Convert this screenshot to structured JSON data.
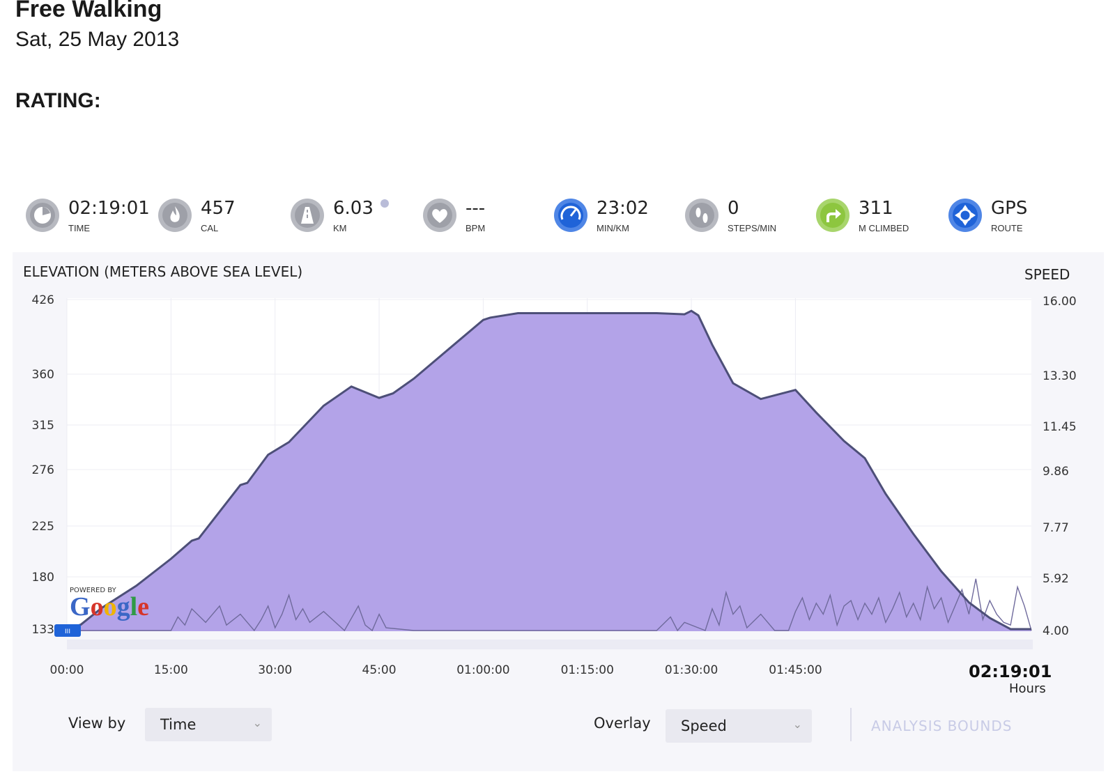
{
  "activity": {
    "title": "Free Walking",
    "date": "Sat, 25 May 2013",
    "rating_label": "RATING:"
  },
  "stats": [
    {
      "value": "02:19:01",
      "label": "TIME",
      "icon": "stopwatch-icon",
      "color": "#9ea0a8"
    },
    {
      "value": "457",
      "label": "CAL",
      "icon": "flame-icon",
      "color": "#9ea0a8"
    },
    {
      "value": "6.03",
      "label": "KM",
      "icon": "road-icon",
      "color": "#9ea0a8"
    },
    {
      "value": "---",
      "label": "BPM",
      "icon": "heart-icon",
      "color": "#9ea0a8"
    },
    {
      "value": "23:02",
      "label": "MIN/KM",
      "icon": "speedometer-icon",
      "color": "#1f63d8"
    },
    {
      "value": "0",
      "label": "STEPS/MIN",
      "icon": "footsteps-icon",
      "color": "#9ea0a8"
    },
    {
      "value": "311",
      "label": "M CLIMBED",
      "icon": "climb-arrow-icon",
      "color": "#8dc63f"
    },
    {
      "value": "GPS",
      "label": "ROUTE",
      "icon": "gps-target-icon",
      "color": "#1f63d8"
    }
  ],
  "chart_data": {
    "type": "area",
    "left_axis_title": "ELEVATION (METERS ABOVE SEA LEVEL)",
    "right_axis_title": "SPEED",
    "left_ticks": [
      "426",
      "360",
      "315",
      "276",
      "225",
      "180",
      "133"
    ],
    "left_tick_values": [
      426,
      360,
      315,
      276,
      225,
      180,
      133
    ],
    "right_ticks": [
      "16.00",
      "13.30",
      "11.45",
      "9.86",
      "7.77",
      "5.92",
      "4.00"
    ],
    "right_tick_values": [
      16.0,
      13.3,
      11.45,
      9.86,
      7.77,
      5.92,
      4.0
    ],
    "x_ticks": [
      "00:00",
      "15:00",
      "30:00",
      "45:00",
      "01:00:00",
      "01:15:00",
      "01:30:00",
      "01:45:00"
    ],
    "x_tick_values": [
      0,
      15,
      30,
      45,
      60,
      75,
      90,
      105
    ],
    "x_range": [
      0,
      139
    ],
    "end_time": "02:19:01",
    "end_unit": "Hours",
    "fill_color": "#b3a3e8",
    "line_color": "#4d4f78",
    "elevation": {
      "name": "Elevation",
      "x": [
        0,
        2,
        5,
        10,
        15,
        18,
        19,
        22,
        25,
        26,
        29,
        32,
        37,
        41,
        45,
        47,
        50,
        55,
        60,
        61,
        65,
        70,
        75,
        80,
        85,
        89,
        90,
        91,
        93,
        96,
        100,
        105,
        108,
        112,
        115,
        118,
        122,
        126,
        130,
        133,
        136,
        139
      ],
      "y": [
        133,
        137,
        152,
        172,
        196,
        212,
        214,
        238,
        262,
        264,
        289,
        300,
        332,
        349,
        339,
        343,
        356,
        382,
        408,
        410,
        414,
        414,
        414,
        414,
        414,
        413,
        416,
        412,
        386,
        352,
        338,
        346,
        326,
        301,
        286,
        254,
        218,
        185,
        157,
        143,
        133,
        133
      ]
    },
    "speed": {
      "name": "Speed",
      "x": [
        0,
        10,
        15,
        16,
        17,
        18,
        20,
        22,
        23,
        25,
        27,
        28,
        29,
        30,
        31,
        32,
        33,
        34,
        35,
        37,
        40,
        42,
        43,
        44,
        45,
        46,
        50,
        55,
        60,
        65,
        70,
        75,
        80,
        85,
        87,
        88,
        89,
        92,
        93,
        94,
        95,
        96,
        97,
        98,
        100,
        102,
        104,
        105,
        106,
        107,
        108,
        109,
        110,
        111,
        112,
        113,
        114,
        115,
        116,
        117,
        118,
        119,
        120,
        121,
        122,
        123,
        124,
        125,
        126,
        127,
        128,
        129,
        130,
        131,
        132,
        133,
        134,
        135,
        136,
        137,
        138,
        139
      ],
      "y": [
        4.0,
        4.0,
        4.0,
        4.5,
        4.2,
        4.8,
        4.3,
        4.9,
        4.2,
        4.6,
        4.0,
        4.4,
        4.9,
        4.1,
        4.6,
        5.3,
        4.4,
        4.8,
        4.3,
        4.7,
        4.0,
        4.9,
        4.2,
        4.0,
        4.6,
        4.1,
        4.0,
        4.0,
        4.0,
        4.0,
        4.0,
        4.0,
        4.0,
        4.0,
        4.5,
        4.0,
        4.3,
        4.0,
        4.8,
        4.2,
        5.4,
        4.6,
        4.9,
        4.1,
        4.6,
        4.0,
        4.0,
        4.7,
        5.2,
        4.4,
        5.0,
        4.6,
        5.3,
        4.2,
        4.9,
        5.1,
        4.4,
        5.0,
        4.6,
        5.2,
        4.3,
        4.8,
        5.4,
        4.5,
        5.0,
        4.4,
        5.6,
        4.8,
        5.2,
        4.3,
        4.9,
        5.5,
        4.6,
        5.9,
        4.4,
        5.1,
        4.6,
        4.3,
        4.2,
        5.6,
        4.9,
        4.0
      ]
    }
  },
  "controls": {
    "view_by_label": "View by",
    "view_by_value": "Time",
    "overlay_label": "Overlay",
    "overlay_value": "Speed",
    "analysis_label": "ANALYSIS BOUNDS"
  },
  "google": {
    "powered_by": "POWERED BY",
    "logo_letters": [
      "G",
      "o",
      "o",
      "g",
      "l",
      "e"
    ],
    "logo_colors": [
      "#3b67c6",
      "#d6352a",
      "#f0b400",
      "#3b67c6",
      "#2f9a45",
      "#d6352a"
    ]
  },
  "slider_label": "III"
}
